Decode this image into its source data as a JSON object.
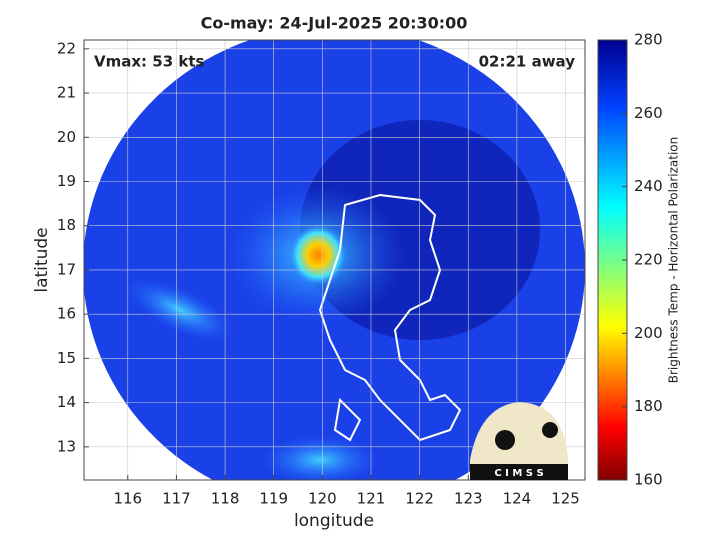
{
  "chart_data": {
    "type": "map",
    "title": "Co-may: 24-Jul-2025 20:30:00",
    "annotations": [
      "Vmax: 53 kts",
      "02:21 away"
    ],
    "xlabel": "longitude",
    "ylabel": "latitude",
    "xlim": [
      115.1,
      125.4
    ],
    "xticks": [
      116,
      117,
      118,
      119,
      120,
      121,
      122,
      123,
      124,
      125
    ],
    "ylim": [
      12.25,
      22.2
    ],
    "yticks": [
      13,
      14,
      15,
      16,
      17,
      18,
      19,
      20,
      21,
      22
    ],
    "grid": true,
    "colorbar": {
      "label": "Brightness Temp - Horizontal Polarization",
      "lim": [
        160,
        280
      ],
      "ticks": [
        160,
        180,
        200,
        220,
        240,
        260,
        280
      ]
    },
    "logo": "C I M S S"
  }
}
